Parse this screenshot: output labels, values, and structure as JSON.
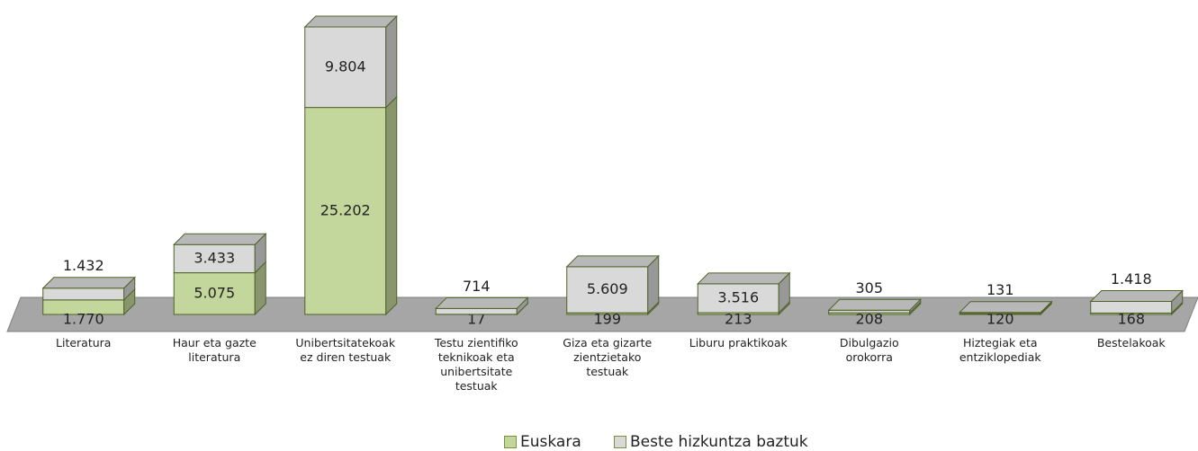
{
  "chart_data": {
    "type": "bar3d_stacked",
    "categories": [
      "Literatura",
      "Haur eta gazte literatura",
      "Unibertsitatekoak ez diren testuak",
      "Testu zientifiko teknikoak eta unibertsitate testuak",
      "Giza eta gizarte zientzietako testuak",
      "Liburu praktikoak",
      "Dibulgazio orokorra",
      "Hiztegiak eta entziklopediak",
      "Bestelakoak"
    ],
    "series": [
      {
        "name": "Euskara",
        "color": "#c3d69b",
        "values": [
          1770,
          5075,
          25202,
          17,
          199,
          213,
          208,
          120,
          168
        ],
        "value_labels": [
          "1.770",
          "5.075",
          "25.202",
          "17",
          "199",
          "213",
          "208",
          "120",
          "168"
        ]
      },
      {
        "name": "Beste hizkuntza baztuk",
        "color": "#d9d9d9",
        "values": [
          1432,
          3433,
          9804,
          714,
          5609,
          3516,
          305,
          131,
          1418
        ],
        "value_labels": [
          "1.432",
          "3.433",
          "9.804",
          "714",
          "5.609",
          "3.516",
          "305",
          "131",
          "1.418"
        ]
      }
    ],
    "legend": "bottom"
  }
}
